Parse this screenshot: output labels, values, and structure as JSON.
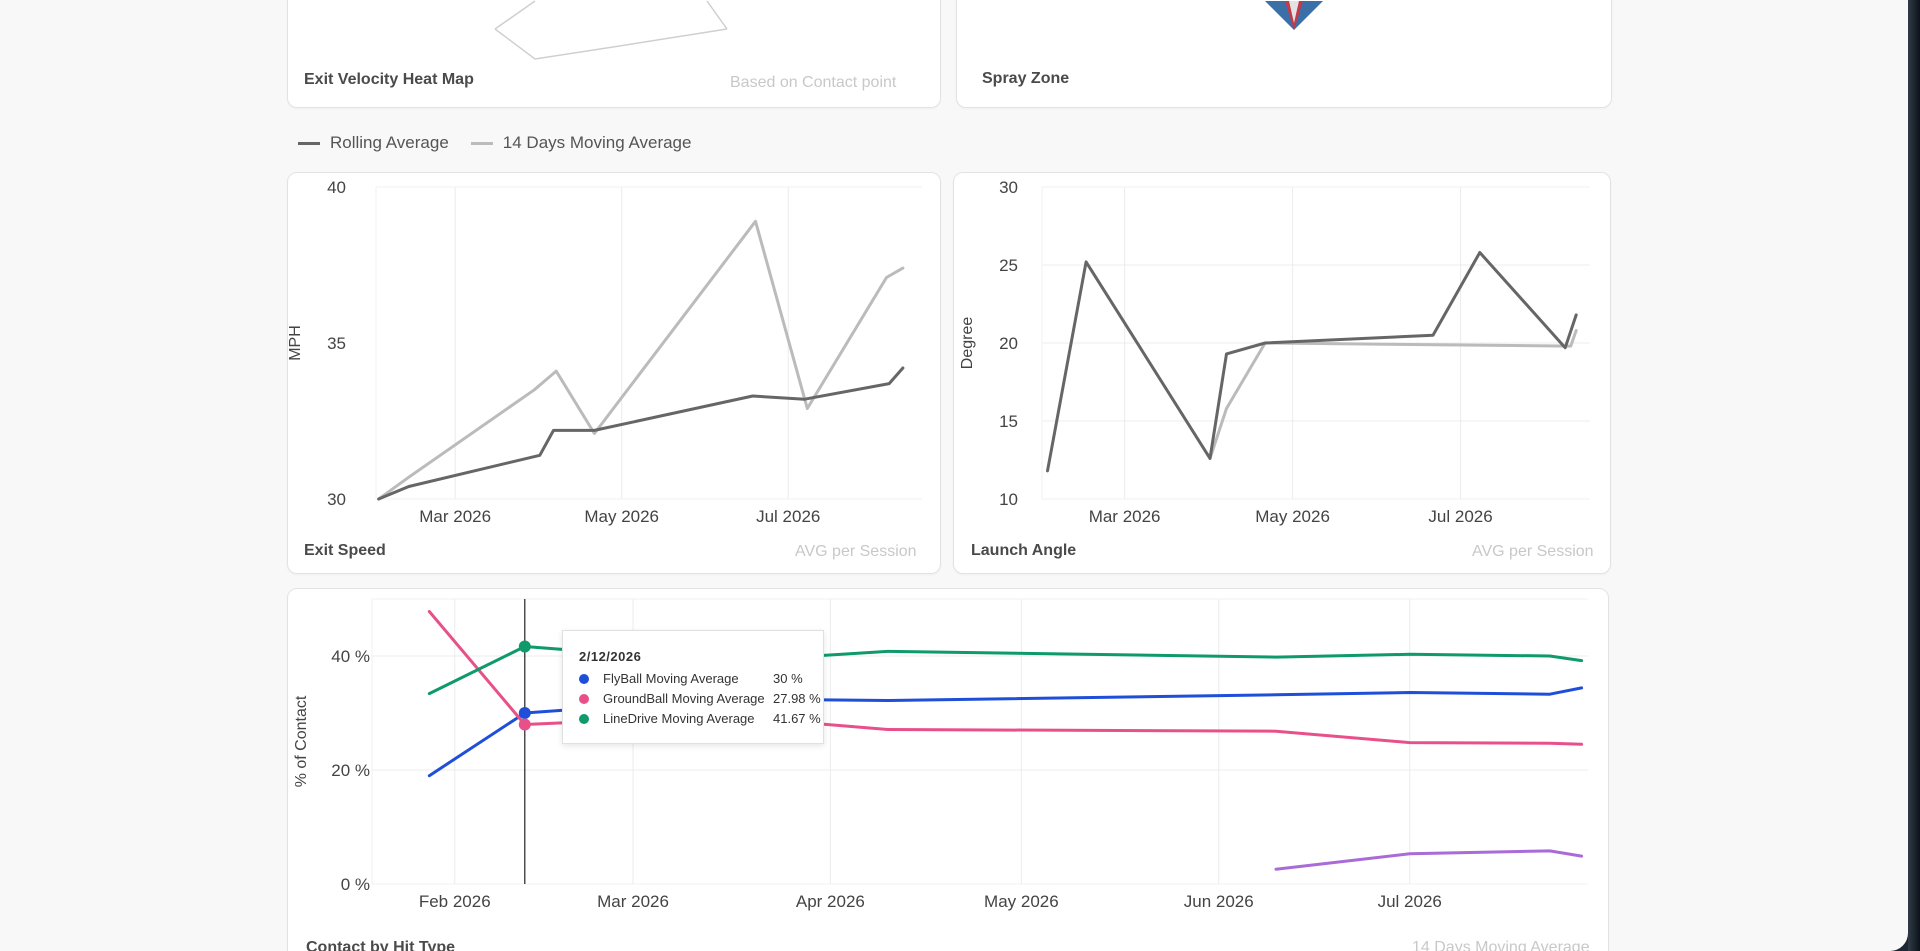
{
  "cards": {
    "exit_velocity": {
      "title": "Exit Velocity Heat Map",
      "subtitle": "Based on Contact point"
    },
    "spray_zone": {
      "title": "Spray Zone"
    },
    "exit_speed": {
      "title": "Exit Speed",
      "subtitle": "AVG per Session"
    },
    "launch_angle": {
      "title": "Launch Angle",
      "subtitle": "AVG per Session"
    },
    "contact": {
      "title": "Contact by Hit Type",
      "subtitle": "14 Days Moving Average"
    }
  },
  "legend": {
    "items": [
      {
        "label": "Rolling Average",
        "color": "#666666"
      },
      {
        "label": "14 Days Moving Average",
        "color": "#bbbbbb"
      }
    ]
  },
  "tooltip": {
    "date": "2/12/2026",
    "rows": [
      {
        "name": "FlyBall Moving Average",
        "value": "30 %",
        "color": "#1f4fd8"
      },
      {
        "name": "GroundBall Moving Average",
        "value": "27.98 %",
        "color": "#e8508a"
      },
      {
        "name": "LineDrive Moving Average",
        "value": "41.67 %",
        "color": "#0e9a6a"
      }
    ]
  },
  "chart_data": [
    {
      "type": "line",
      "title": "Exit Speed",
      "subtitle": "AVG per Session",
      "ylabel": "MPH",
      "ylim": [
        30,
        40
      ],
      "yticks": [
        30,
        35,
        40
      ],
      "xticks": [
        "Mar 2026",
        "May 2026",
        "Jul 2026"
      ],
      "grid": true,
      "series": [
        {
          "name": "Rolling Average",
          "color": "#666666",
          "x": [
            "2026-02-01",
            "2026-02-12",
            "2026-04-01",
            "2026-04-06",
            "2026-04-21",
            "2026-06-18",
            "2026-07-07",
            "2026-08-07",
            "2026-08-12"
          ],
          "values": [
            30.0,
            30.4,
            31.4,
            32.2,
            32.2,
            33.3,
            33.2,
            33.7,
            34.2
          ]
        },
        {
          "name": "14 Days Moving Average",
          "color": "#bbbbbb",
          "x": [
            "2026-02-01",
            "2026-02-12",
            "2026-03-30",
            "2026-04-07",
            "2026-04-21",
            "2026-06-19",
            "2026-07-08",
            "2026-08-06",
            "2026-08-12"
          ],
          "values": [
            30.0,
            30.7,
            33.5,
            34.1,
            32.1,
            38.9,
            32.9,
            37.1,
            37.4
          ]
        }
      ]
    },
    {
      "type": "line",
      "title": "Launch Angle",
      "subtitle": "AVG per Session",
      "ylabel": "Degree",
      "ylim": [
        10,
        30
      ],
      "yticks": [
        10,
        15,
        20,
        25,
        30
      ],
      "xticks": [
        "Mar 2026",
        "May 2026",
        "Jul 2026"
      ],
      "grid": true,
      "series": [
        {
          "name": "Rolling Average",
          "color": "#666666",
          "x": [
            "2026-02-01",
            "2026-02-15",
            "2026-04-01",
            "2026-04-07",
            "2026-04-21",
            "2026-06-21",
            "2026-07-08",
            "2026-08-08",
            "2026-08-12"
          ],
          "values": [
            11.8,
            25.2,
            12.6,
            19.3,
            20.0,
            20.5,
            25.8,
            19.7,
            21.8
          ]
        },
        {
          "name": "14 Days Moving Average",
          "color": "#bbbbbb",
          "x": [
            "2026-04-01",
            "2026-04-07",
            "2026-04-21",
            "2026-08-10",
            "2026-08-12"
          ],
          "values": [
            12.6,
            15.8,
            20.0,
            19.8,
            20.8
          ]
        }
      ]
    },
    {
      "type": "line",
      "title": "Contact by Hit Type",
      "subtitle": "14 Days Moving Average",
      "ylabel": "% of Contact",
      "ylim": [
        0,
        50
      ],
      "yticks": [
        0,
        20,
        40
      ],
      "yticklabels": [
        "0 %",
        "20 %",
        "40 %"
      ],
      "xticks": [
        "Feb 2026",
        "Mar 2026",
        "Apr 2026",
        "May 2026",
        "Jun 2026",
        "Jul 2026"
      ],
      "grid": true,
      "series": [
        {
          "name": "FlyBall Moving Average",
          "color": "#1f4fd8",
          "x": [
            "2026-01-28",
            "2026-02-12",
            "2026-03-15",
            "2026-04-10",
            "2026-06-10",
            "2026-07-01",
            "2026-07-23",
            "2026-07-28"
          ],
          "values": [
            19.0,
            30.0,
            32.5,
            32.2,
            33.2,
            33.6,
            33.3,
            34.4
          ]
        },
        {
          "name": "GroundBall Moving Average",
          "color": "#e8508a",
          "x": [
            "2026-01-28",
            "2026-02-12",
            "2026-03-15",
            "2026-04-10",
            "2026-06-10",
            "2026-07-01",
            "2026-07-23",
            "2026-07-28"
          ],
          "values": [
            47.8,
            27.98,
            29.5,
            27.1,
            26.8,
            24.8,
            24.7,
            24.5
          ]
        },
        {
          "name": "LineDrive Moving Average",
          "color": "#0e9a6a",
          "x": [
            "2026-01-28",
            "2026-02-12",
            "2026-03-15",
            "2026-04-10",
            "2026-06-10",
            "2026-07-01",
            "2026-07-23",
            "2026-07-28"
          ],
          "values": [
            33.4,
            41.67,
            39.0,
            40.8,
            39.8,
            40.3,
            40.0,
            39.2
          ]
        },
        {
          "name": "",
          "color": "#a86bd8",
          "x": [
            "2026-06-10",
            "2026-07-01",
            "2026-07-23",
            "2026-07-28"
          ],
          "values": [
            2.6,
            5.3,
            5.8,
            4.9
          ]
        }
      ],
      "crosshair_x": "2026-02-12"
    }
  ]
}
